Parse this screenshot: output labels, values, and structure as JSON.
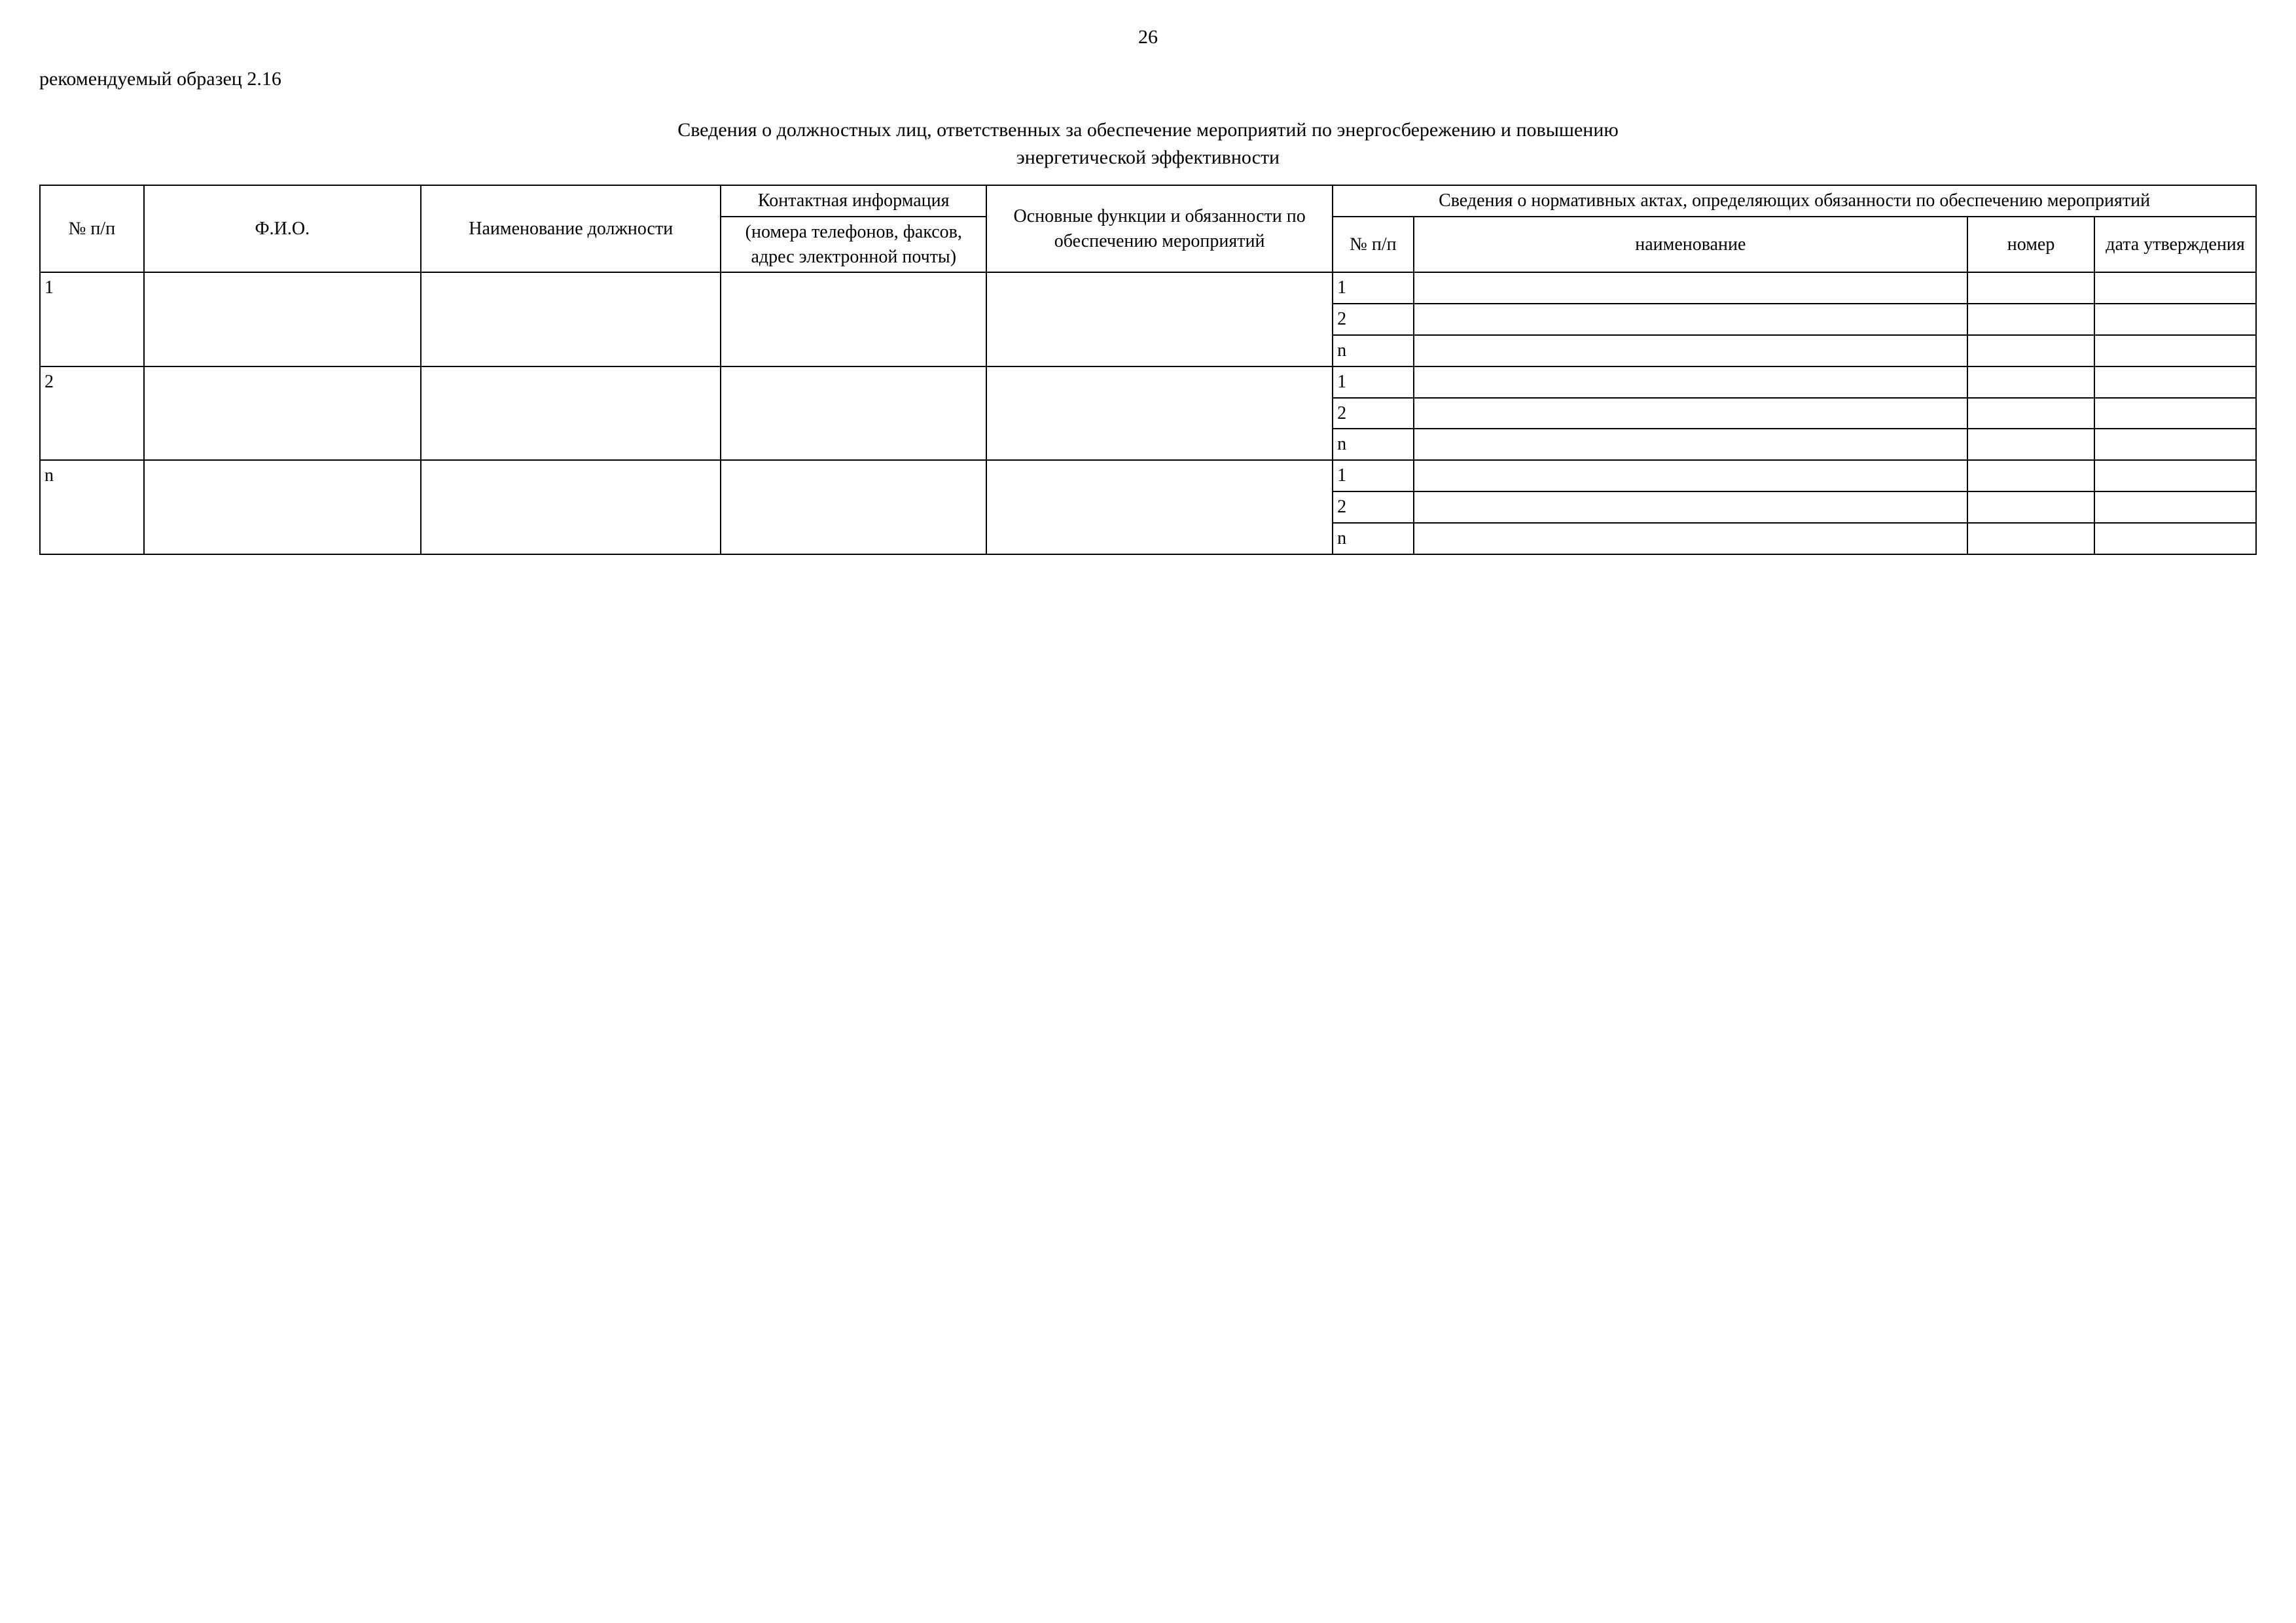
{
  "page_number": "26",
  "sample_label": "рекомендуемый образец 2.16",
  "title_line1": "Сведения о должностных лиц, ответственных за обеспечение мероприятий по энергосбережению и повышению",
  "title_line2": "энергетической эффективности",
  "headers": {
    "nn": "№ п/п",
    "fio": "Ф.И.О.",
    "position": "Наименование должности",
    "contact_top": "Контактная информация",
    "contact_bottom": "(номера телефонов, факсов, адрес электронной почты)",
    "functions": "Основные функции и обязанности по обеспечению мероприятий",
    "acts_group": "Сведения о нормативных актах, определяющих обязанности по обеспечению мероприятий",
    "sub_nn": "№ п/п",
    "sub_name": "наименование",
    "sub_number": "номер",
    "sub_date": "дата утверждения"
  },
  "row_labels": {
    "r1": "1",
    "r2": "2",
    "rn": "n",
    "s1": "1",
    "s2": "2",
    "sn": "n"
  }
}
